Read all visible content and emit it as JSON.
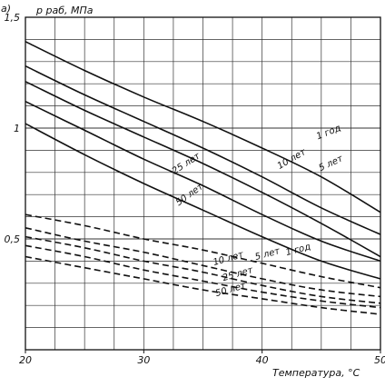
{
  "panel_label": "а)",
  "chart_data": {
    "type": "line",
    "xlabel": "Температура, °С",
    "ylabel": "p раб, МПа",
    "xlim": [
      20,
      50
    ],
    "ylim": [
      0,
      1.5
    ],
    "x_ticks": [
      "20",
      "30",
      "40",
      "50"
    ],
    "y_ticks": [
      {
        "value": 1.5,
        "label": "1,5"
      },
      {
        "value": 1.0,
        "label": "1"
      },
      {
        "value": 0.5,
        "label": "0,5"
      }
    ],
    "grid": true,
    "colors": {
      "line": "#111111",
      "grid": "#333333"
    },
    "series": [
      {
        "name": "1 год",
        "group": "solid",
        "dash": false,
        "x": [
          20,
          25,
          30,
          35,
          40,
          45,
          50
        ],
        "y": [
          1.39,
          1.26,
          1.14,
          1.03,
          0.91,
          0.78,
          0.62
        ]
      },
      {
        "name": "5 лет",
        "group": "solid",
        "dash": false,
        "x": [
          20,
          25,
          30,
          35,
          40,
          45,
          50
        ],
        "y": [
          1.28,
          1.15,
          1.03,
          0.91,
          0.78,
          0.64,
          0.52
        ]
      },
      {
        "name": "10 лет",
        "group": "solid",
        "dash": false,
        "x": [
          20,
          25,
          30,
          35,
          40,
          45,
          50
        ],
        "y": [
          1.21,
          1.08,
          0.96,
          0.84,
          0.71,
          0.57,
          0.42
        ]
      },
      {
        "name": "25 лет",
        "group": "solid",
        "dash": false,
        "x": [
          20,
          25,
          30,
          35,
          40,
          45,
          50
        ],
        "y": [
          1.12,
          0.99,
          0.86,
          0.74,
          0.61,
          0.49,
          0.4
        ]
      },
      {
        "name": "50 лет",
        "group": "solid",
        "dash": false,
        "x": [
          20,
          25,
          30,
          35,
          40,
          45,
          50
        ],
        "y": [
          1.02,
          0.88,
          0.75,
          0.63,
          0.51,
          0.4,
          0.32
        ]
      },
      {
        "name": "1 год",
        "group": "dashed",
        "dash": true,
        "x": [
          20,
          25,
          30,
          35,
          40,
          45,
          50
        ],
        "y": [
          0.61,
          0.56,
          0.5,
          0.45,
          0.39,
          0.33,
          0.28
        ]
      },
      {
        "name": "5 лет",
        "group": "dashed",
        "dash": true,
        "x": [
          20,
          25,
          30,
          35,
          40,
          45,
          50
        ],
        "y": [
          0.55,
          0.49,
          0.44,
          0.38,
          0.32,
          0.27,
          0.24
        ]
      },
      {
        "name": "10 лет",
        "group": "dashed",
        "dash": true,
        "x": [
          20,
          25,
          30,
          35,
          40,
          45,
          50
        ],
        "y": [
          0.51,
          0.46,
          0.4,
          0.35,
          0.29,
          0.24,
          0.21
        ]
      },
      {
        "name": "25 лет",
        "group": "dashed",
        "dash": true,
        "x": [
          20,
          25,
          30,
          35,
          40,
          45,
          50
        ],
        "y": [
          0.47,
          0.42,
          0.36,
          0.31,
          0.26,
          0.22,
          0.19
        ]
      },
      {
        "name": "50 лет",
        "group": "dashed",
        "dash": true,
        "x": [
          20,
          25,
          30,
          35,
          40,
          45,
          50
        ],
        "y": [
          0.42,
          0.37,
          0.32,
          0.27,
          0.23,
          0.19,
          0.16
        ]
      }
    ],
    "curve_labels": [
      {
        "text": "1 год",
        "x": 45.7,
        "y": 0.97,
        "angle": -22
      },
      {
        "text": "5 лет",
        "x": 45.9,
        "y": 0.83,
        "angle": -25
      },
      {
        "text": "10 лет",
        "x": 42.6,
        "y": 0.85,
        "angle": -30
      },
      {
        "text": "25 лет",
        "x": 33.7,
        "y": 0.83,
        "angle": -33
      },
      {
        "text": "50 лет",
        "x": 34.0,
        "y": 0.69,
        "angle": -36
      },
      {
        "text": "1 год",
        "x": 43.1,
        "y": 0.44,
        "angle": -15
      },
      {
        "text": "5 лет",
        "x": 40.5,
        "y": 0.42,
        "angle": -15
      },
      {
        "text": "10 лет",
        "x": 37.2,
        "y": 0.4,
        "angle": -16
      },
      {
        "text": "25 лет",
        "x": 38.0,
        "y": 0.33,
        "angle": -16
      },
      {
        "text": "50 лет",
        "x": 37.4,
        "y": 0.26,
        "angle": -16
      }
    ]
  }
}
